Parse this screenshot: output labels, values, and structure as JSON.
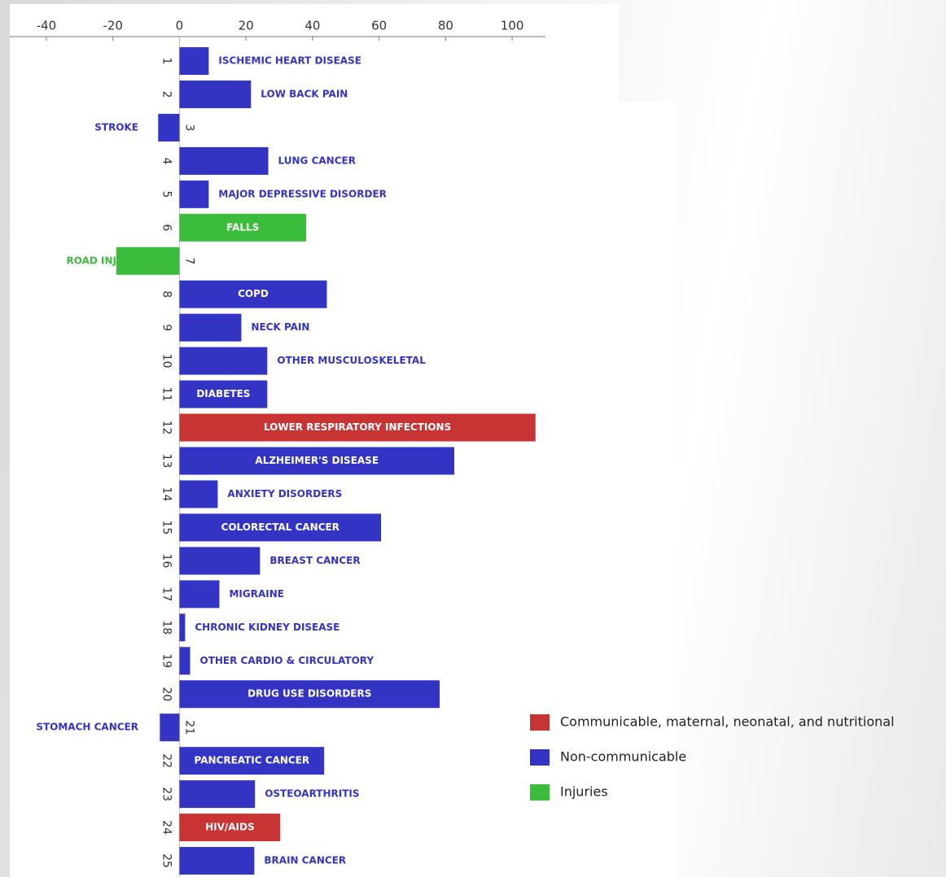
{
  "chart_data": {
    "type": "bar",
    "orientation": "horizontal",
    "categories": [
      "1",
      "2",
      "3",
      "4",
      "5",
      "6",
      "7",
      "8",
      "9",
      "10",
      "11",
      "12",
      "13",
      "14",
      "15",
      "16",
      "17",
      "18",
      "19",
      "20",
      "21",
      "22",
      "23",
      "24",
      "25"
    ],
    "bar_labels": [
      "ISCHEMIC HEART DISEASE",
      "LOW BACK PAIN",
      "STROKE",
      "LUNG CANCER",
      "MAJOR DEPRESSIVE DISORDER",
      "FALLS",
      "ROAD INJURY",
      "COPD",
      "NECK PAIN",
      "OTHER MUSCULOSKELETAL",
      "DIABETES",
      "LOWER RESPIRATORY INFECTIONS",
      "ALZHEIMER'S DISEASE",
      "ANXIETY DISORDERS",
      "COLORECTAL CANCER",
      "BREAST CANCER",
      "MIGRAINE",
      "CHRONIC KIDNEY DISEASE",
      "OTHER CARDIO & CIRCULATORY",
      "DRUG USE DISORDERS",
      "STOMACH CANCER",
      "PANCREATIC CANCER",
      "OSTEOARTHRITIS",
      "HIV/AIDS",
      "BRAIN CANCER"
    ],
    "series": [
      {
        "name": "Communicable, maternal, neonatal, and nutritional",
        "color": "#c83434",
        "values": [
          null,
          null,
          null,
          null,
          null,
          null,
          null,
          null,
          null,
          null,
          null,
          107,
          null,
          null,
          null,
          null,
          null,
          null,
          null,
          null,
          null,
          null,
          null,
          30.3,
          null
        ]
      },
      {
        "name": "Non-communicable",
        "color": "#3434c4",
        "values": [
          8.8,
          21.5,
          -6.4,
          26.7,
          8.8,
          null,
          null,
          44.3,
          18.6,
          26.4,
          26.4,
          null,
          82.6,
          11.5,
          60.6,
          24.2,
          12,
          1.7,
          3.2,
          78.2,
          -5.9,
          43.5,
          22.7,
          null,
          22.5
        ]
      },
      {
        "name": "Injuries",
        "color": "#3cbc3c",
        "values": [
          null,
          null,
          null,
          null,
          null,
          38.1,
          -19,
          null,
          null,
          null,
          null,
          null,
          null,
          null,
          null,
          null,
          null,
          null,
          null,
          null,
          null,
          null,
          null,
          null,
          null
        ]
      }
    ],
    "xlim": [
      -51,
      110
    ],
    "xticks": [
      -40,
      -20,
      0,
      20,
      40,
      60,
      80,
      100
    ]
  }
}
